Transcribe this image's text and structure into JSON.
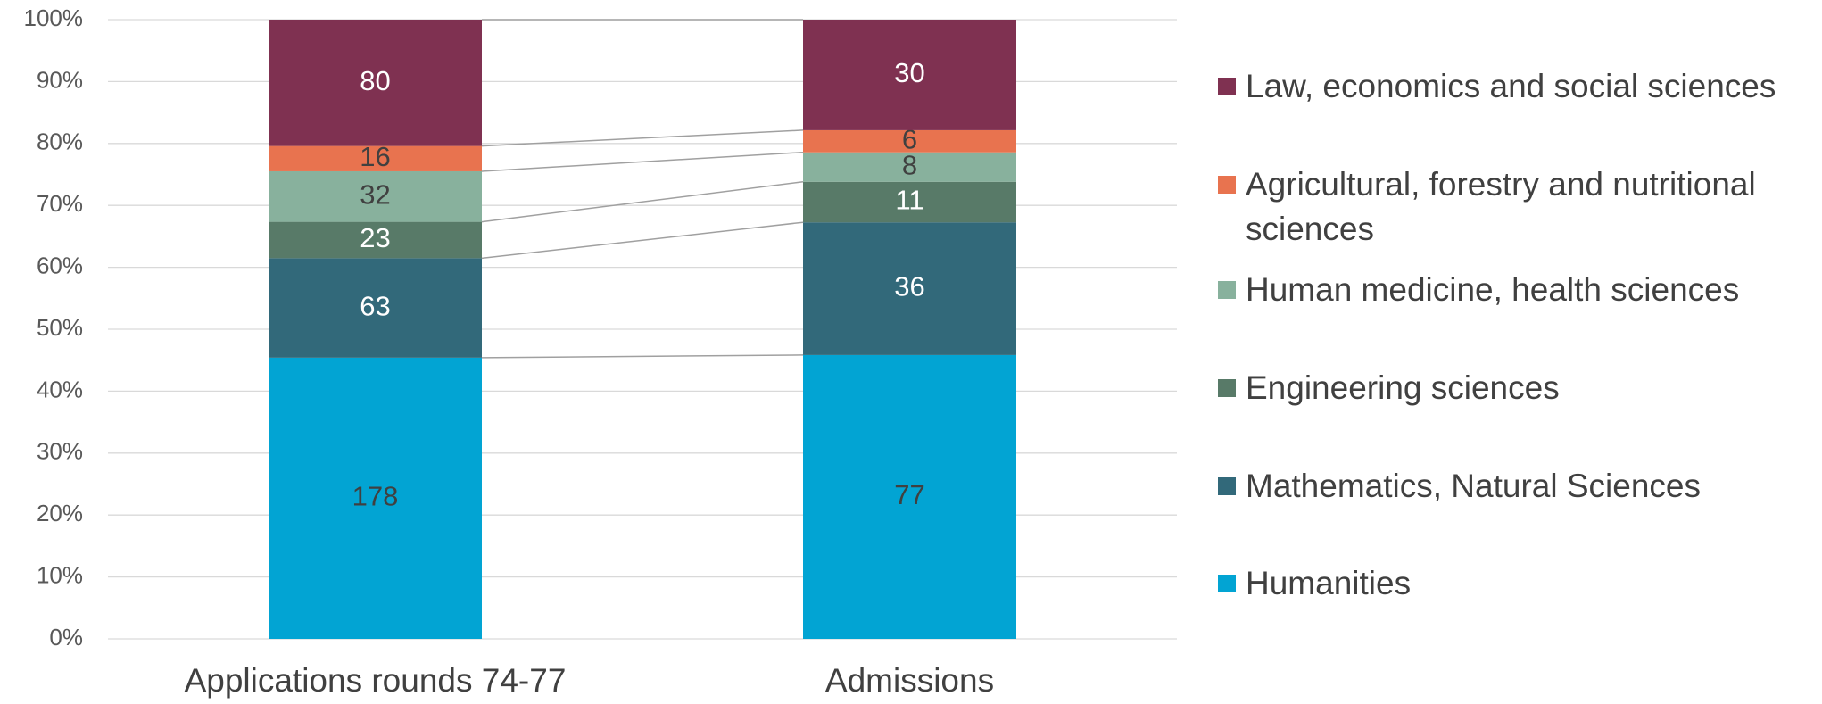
{
  "chart_data": {
    "type": "bar",
    "stacking": "percent",
    "categories": [
      "Applications rounds 74-77",
      "Admissions"
    ],
    "series": [
      {
        "name": "Humanities",
        "color": "#02a4d3",
        "label_color": "#404040",
        "values": [
          178,
          77
        ]
      },
      {
        "name": "Mathematics, Natural Sciences",
        "color": "#32697a",
        "label_color": "#ffffff",
        "values": [
          63,
          36
        ]
      },
      {
        "name": "Engineering sciences",
        "color": "#587a68",
        "label_color": "#ffffff",
        "values": [
          23,
          11
        ]
      },
      {
        "name": "Human medicine, health sciences",
        "color": "#88b19d",
        "label_color": "#404040",
        "values": [
          32,
          8
        ]
      },
      {
        "name": "Agricultural, forestry and nutritional sciences",
        "color": "#e8734f",
        "label_color": "#404040",
        "values": [
          16,
          6
        ]
      },
      {
        "name": "Law, economics and social sciences",
        "color": "#7f3151",
        "label_color": "#ffffff",
        "values": [
          80,
          30
        ]
      }
    ],
    "ylim": [
      0,
      100
    ],
    "yticks": [
      {
        "value": 0,
        "label": "0%"
      },
      {
        "value": 10,
        "label": "10%"
      },
      {
        "value": 20,
        "label": "20%"
      },
      {
        "value": 30,
        "label": "30%"
      },
      {
        "value": 40,
        "label": "40%"
      },
      {
        "value": 50,
        "label": "50%"
      },
      {
        "value": 60,
        "label": "60%"
      },
      {
        "value": 70,
        "label": "70%"
      },
      {
        "value": 80,
        "label": "80%"
      },
      {
        "value": 90,
        "label": "90%"
      },
      {
        "value": 100,
        "label": "100%"
      }
    ],
    "grid": true,
    "legend_position": "right"
  }
}
